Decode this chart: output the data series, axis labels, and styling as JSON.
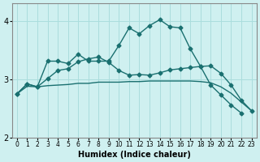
{
  "xlabel": "Humidex (Indice chaleur)",
  "x_values": [
    0,
    1,
    2,
    3,
    4,
    5,
    6,
    7,
    8,
    9,
    10,
    11,
    12,
    13,
    14,
    15,
    16,
    17,
    18,
    19,
    20,
    21,
    22,
    23
  ],
  "line1": [
    2.75,
    2.92,
    2.87,
    3.31,
    3.31,
    3.27,
    3.43,
    3.31,
    3.31,
    3.31,
    3.58,
    3.88,
    3.78,
    3.92,
    4.02,
    3.9,
    3.88,
    3.52,
    3.22,
    2.9,
    2.73,
    2.56,
    2.42,
    null
  ],
  "line2": [
    2.75,
    2.92,
    2.87,
    3.01,
    3.15,
    3.18,
    3.3,
    3.35,
    3.38,
    3.29,
    3.15,
    3.07,
    3.08,
    3.07,
    3.11,
    3.16,
    3.18,
    3.2,
    3.22,
    3.23,
    3.1,
    2.9,
    2.64,
    2.46
  ],
  "line3": [
    2.75,
    2.88,
    2.87,
    2.89,
    2.9,
    2.91,
    2.93,
    2.93,
    2.95,
    2.95,
    2.95,
    2.96,
    2.96,
    2.97,
    2.97,
    2.97,
    2.97,
    2.97,
    2.96,
    2.94,
    2.87,
    2.76,
    2.61,
    2.46
  ],
  "bg_color": "#cff0f0",
  "grid_color": "#aadddd",
  "line_color": "#1a7070",
  "ylim": [
    2.0,
    4.3
  ],
  "yticks": [
    2,
    3,
    4
  ],
  "xlim": [
    -0.5,
    23.5
  ]
}
